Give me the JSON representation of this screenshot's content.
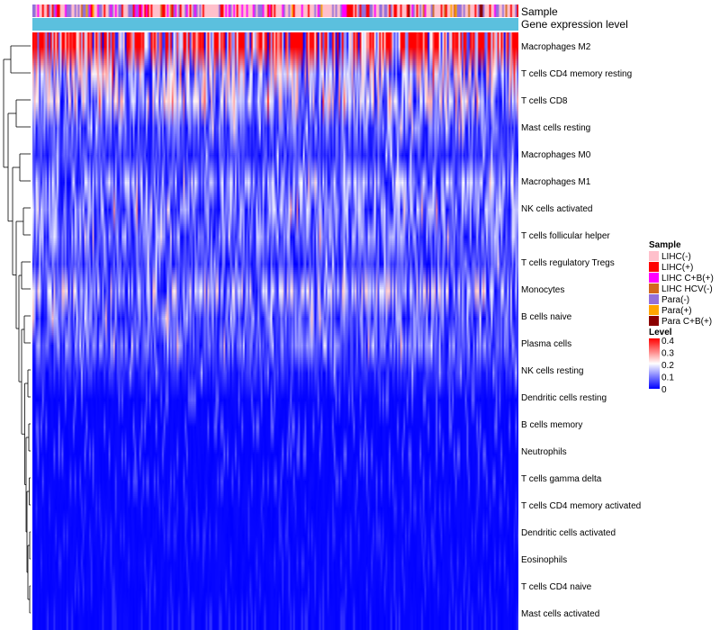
{
  "chart_data": {
    "type": "heatmap",
    "title": "",
    "annotation_tracks": [
      "Sample",
      "Gene expression level"
    ],
    "rows": [
      {
        "label": "Macrophages M2",
        "mean": 0.3
      },
      {
        "label": "T cells CD4 memory resting",
        "mean": 0.14
      },
      {
        "label": "T cells CD8",
        "mean": 0.13
      },
      {
        "label": "Mast cells resting",
        "mean": 0.07
      },
      {
        "label": "Macrophages M0",
        "mean": 0.04
      },
      {
        "label": "Macrophages M1",
        "mean": 0.1
      },
      {
        "label": "NK cells activated",
        "mean": 0.09
      },
      {
        "label": "T cells follicular helper",
        "mean": 0.08
      },
      {
        "label": "T cells regulatory  Tregs",
        "mean": 0.05
      },
      {
        "label": "Monocytes",
        "mean": 0.12
      },
      {
        "label": "B cells naive",
        "mean": 0.07
      },
      {
        "label": "Plasma cells",
        "mean": 0.07
      },
      {
        "label": "NK cells resting",
        "mean": 0.03
      },
      {
        "label": "Dendritic cells resting",
        "mean": 0.02
      },
      {
        "label": "B cells memory",
        "mean": 0.02
      },
      {
        "label": "Neutrophils",
        "mean": 0.02
      },
      {
        "label": "T cells gamma delta",
        "mean": 0.015
      },
      {
        "label": "T cells CD4 memory activated",
        "mean": 0.01
      },
      {
        "label": "Dendritic cells activated",
        "mean": 0.01
      },
      {
        "label": "Eosinophils",
        "mean": 0.01
      },
      {
        "label": "T cells CD4 naive",
        "mean": 0.01
      },
      {
        "label": "Mast cells activated",
        "mean": 0.01
      }
    ],
    "legend": {
      "sample_title": "Sample",
      "sample": [
        {
          "label": "LIHC(-)",
          "color": "#ffc0cb"
        },
        {
          "label": "LIHC(+)",
          "color": "#ff0000"
        },
        {
          "label": "LIHC C+B(+)",
          "color": "#ff00ff"
        },
        {
          "label": "LIHC HCV(-)",
          "color": "#d2691e"
        },
        {
          "label": "Para(-)",
          "color": "#9370db"
        },
        {
          "label": "Para(+)",
          "color": "#ffa500"
        },
        {
          "label": "Para C+B(+)",
          "color": "#8b0000"
        }
      ],
      "level_title": "Level",
      "level_ticks": [
        "0.4",
        "0.3",
        "0.2",
        "0.1",
        "0"
      ],
      "level_range": [
        0,
        0.4
      ],
      "level_colors": [
        "#0000ff",
        "#ffffff",
        "#ff0000"
      ]
    },
    "expression_track_color": "#5bc0de"
  }
}
